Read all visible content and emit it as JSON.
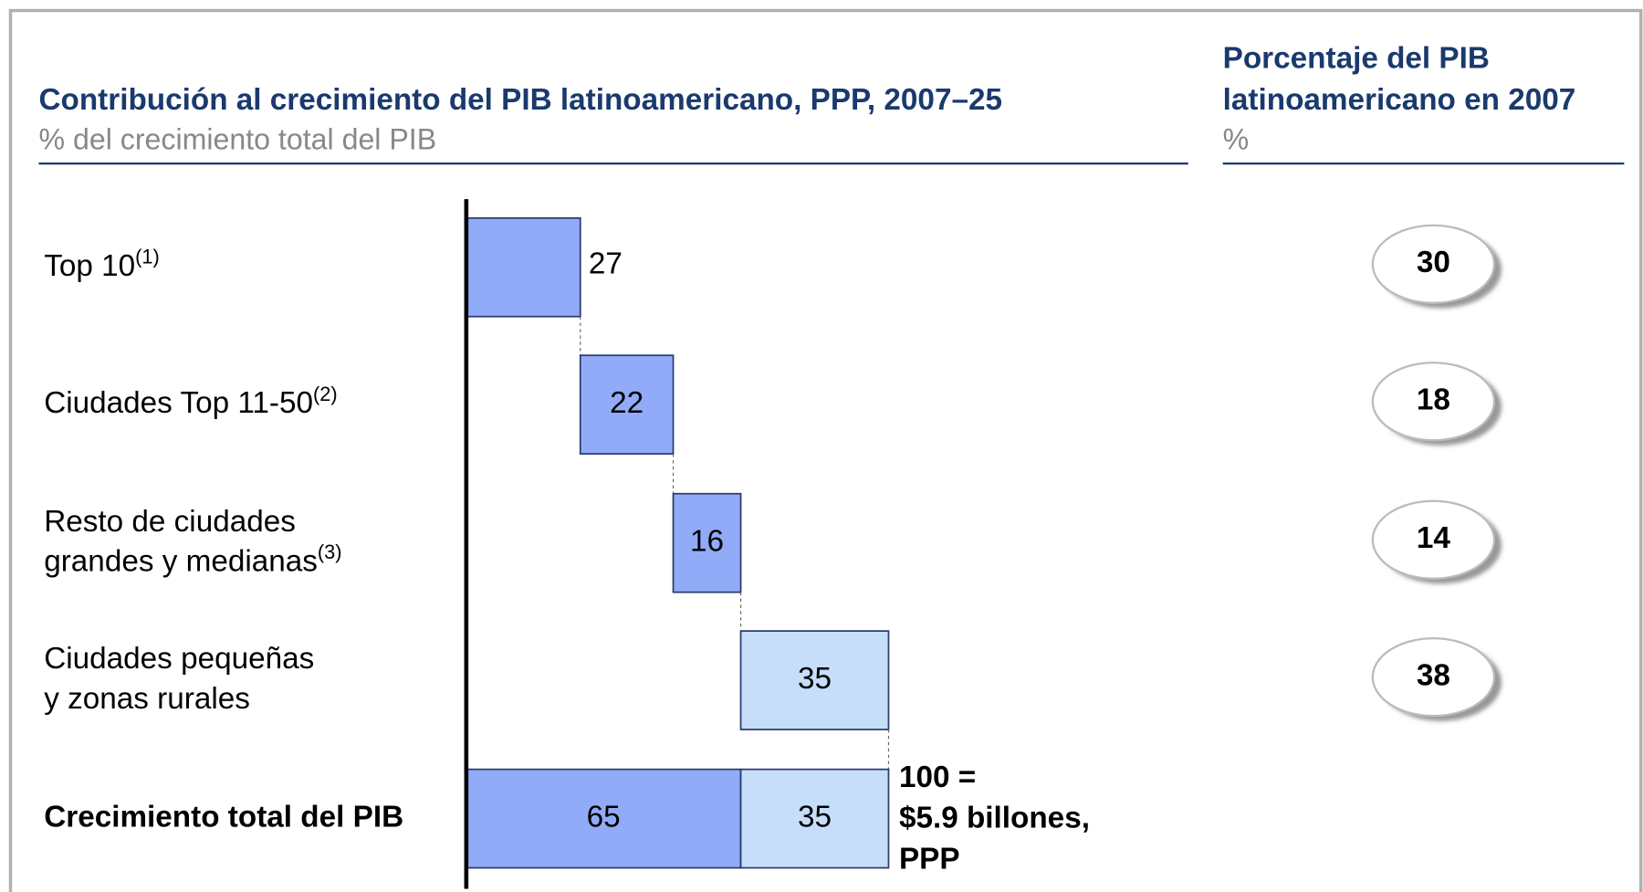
{
  "chart_data": {
    "type": "waterfall",
    "title": "Contribución al crecimiento del PIB latinoamericano, PPP, 2007–25",
    "subtitle": "% del crecimiento total del PIB",
    "categories": [
      [
        "Top 10"
      ],
      [
        "Ciudades Top 11-50"
      ],
      [
        "Resto de ciudades",
        "grandes y medianas"
      ],
      [
        "Ciudades pequeñas",
        "y zonas rurales"
      ]
    ],
    "footnotes": [
      "(1)",
      "(2)",
      "(3)",
      null
    ],
    "values": [
      27,
      22,
      16,
      35
    ],
    "colors": [
      "#91abf8",
      "#91abf8",
      "#91abf8",
      "#c6def9"
    ],
    "label_position": [
      "outside",
      "inside",
      "inside",
      "inside"
    ],
    "xlim": [
      0,
      100
    ],
    "total": {
      "label": "Crecimiento total del PIB",
      "values": [
        65,
        35
      ],
      "colors": [
        "#91abf8",
        "#c6def9"
      ],
      "annotation": [
        "100 =",
        "$5.9 billones,",
        "PPP"
      ]
    },
    "side": {
      "title": [
        "Porcentaje del PIB",
        "latinoamericano en 2007"
      ],
      "unit": "%",
      "values": [
        30,
        18,
        14,
        38
      ]
    }
  }
}
